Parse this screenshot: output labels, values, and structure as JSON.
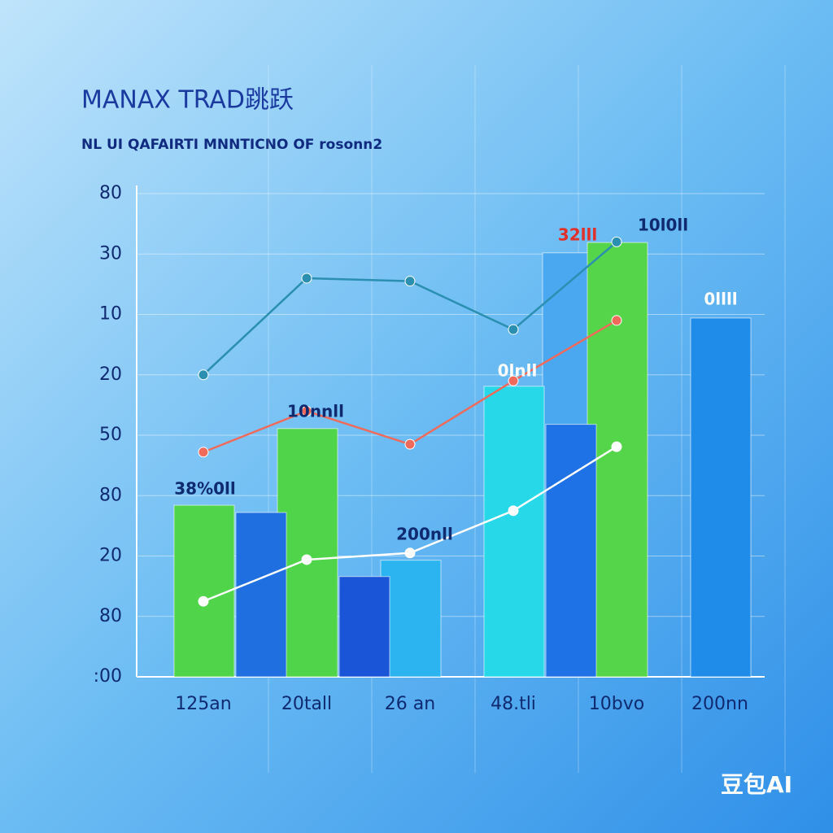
{
  "chart_data": {
    "type": "bar",
    "title": "MANAX TRAD跳跃",
    "subtitle": "NL UI QAFAIRTI MNNTICNO OF rosonn2",
    "watermark": "豆包AI",
    "categories": [
      "125an",
      "20tall",
      "26 an",
      "48.tli",
      "10bvo",
      "200nn"
    ],
    "ylim": [
      0,
      8
    ],
    "yticks": [
      {
        "value": 0,
        "label": ":00"
      },
      {
        "value": 1,
        "label": "80"
      },
      {
        "value": 2,
        "label": "20"
      },
      {
        "value": 3,
        "label": "80"
      },
      {
        "value": 4,
        "label": "50"
      },
      {
        "value": 5,
        "label": "20"
      },
      {
        "value": 6,
        "label": "10"
      },
      {
        "value": 7,
        "label": "30"
      },
      {
        "value": 8,
        "label": "80"
      }
    ],
    "grid": true,
    "bar_series": [
      {
        "values": [
          null,
          null,
          null,
          7.02,
          null,
          null
        ],
        "colors": [
          "#4aa8f0",
          "#4aa8f0",
          "#4aa8f0",
          "#4aa8f0",
          "#4aa8f0",
          "#4aa8f0"
        ]
      },
      {
        "values": [
          2.84,
          4.11,
          1.93,
          4.81,
          7.19,
          5.94
        ],
        "colors": [
          "#4fd44a",
          "#4fd44a",
          "#2bb4ef",
          "#27d9e8",
          "#55d64a",
          "#1e8ce8"
        ]
      },
      {
        "values": [
          2.72,
          1.66,
          null,
          4.18,
          null,
          null
        ],
        "colors": [
          "#1f6fe0",
          "#1a55d8",
          "#1f6fe0",
          "#1f72e6",
          "#1f6fe0",
          "#1f6fe0"
        ]
      }
    ],
    "line_series": [
      {
        "color": "#2a8fb0",
        "values": [
          5.0,
          6.6,
          6.55,
          5.75,
          7.2,
          null
        ]
      },
      {
        "color": "#ef6a5a",
        "values": [
          3.72,
          4.4,
          3.85,
          4.9,
          5.9,
          null
        ]
      },
      {
        "color": "#ffffff",
        "values": [
          1.25,
          1.94,
          2.05,
          2.75,
          3.81,
          null
        ]
      }
    ],
    "annotations": [
      "38%0ll",
      "10nnll",
      "200nll",
      "0lnll",
      "32lll",
      "10l0ll",
      "0llll"
    ]
  }
}
